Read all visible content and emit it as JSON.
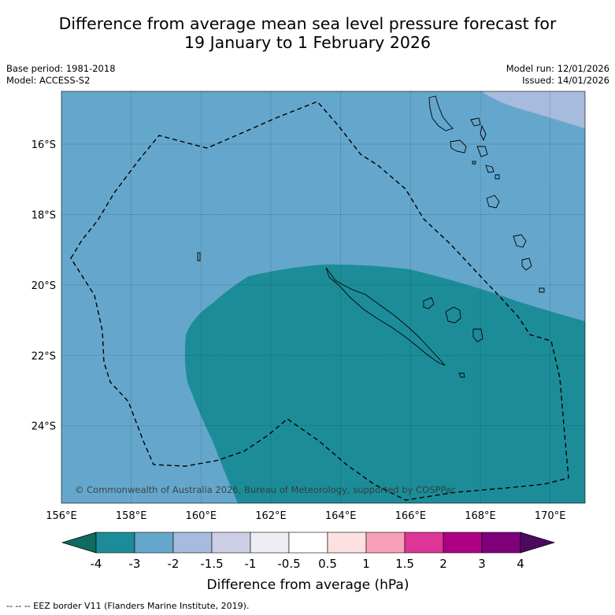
{
  "title": {
    "line1": "Difference from average mean sea level pressure forecast for",
    "line2": "19 January to 1 February 2026"
  },
  "meta": {
    "base_period": "Base period: 1981-2018",
    "model": "Model: ACCESS-S2",
    "model_run": "Model run: 12/01/2026",
    "issued": "Issued: 14/01/2026"
  },
  "map": {
    "lon_range": [
      156,
      171
    ],
    "lat_range": [
      -26.2,
      -14.5
    ],
    "lon_ticks": [
      {
        "value": 156,
        "label": "156°E"
      },
      {
        "value": 158,
        "label": "158°E"
      },
      {
        "value": 160,
        "label": "160°E"
      },
      {
        "value": 162,
        "label": "162°E"
      },
      {
        "value": 164,
        "label": "164°E"
      },
      {
        "value": 166,
        "label": "166°E"
      },
      {
        "value": 168,
        "label": "168°E"
      },
      {
        "value": 170,
        "label": "170°E"
      }
    ],
    "lat_ticks": [
      {
        "value": -16,
        "label": "16°S"
      },
      {
        "value": -18,
        "label": "18°S"
      },
      {
        "value": -20,
        "label": "20°S"
      },
      {
        "value": -22,
        "label": "22°S"
      },
      {
        "value": -24,
        "label": "24°S"
      }
    ],
    "copyright": "© Commonwealth of Australia 2026, Bureau of Meteorology, supported by COSPPac",
    "region_colors": {
      "minus3_to_minus2": "#65a7cc",
      "minus4_to_minus3": "#1c8d98",
      "minus2_to_minus1_5": "#a7bbdc"
    }
  },
  "colorbar": {
    "label": "Difference from average (hPa)",
    "under_color": "#0d6b61",
    "over_color": "#4c0a5f",
    "ticks": [
      "-4",
      "-3",
      "-2",
      "-1.5",
      "-1",
      "-0.5",
      "0.5",
      "1",
      "1.5",
      "2",
      "3",
      "4"
    ],
    "colors": [
      "#1c8d98",
      "#65a7cc",
      "#a7bbdc",
      "#cccfe6",
      "#ededf3",
      "#ffffff",
      "#fde0e0",
      "#f8a0ba",
      "#df3597",
      "#ad0083",
      "#7e007a"
    ]
  },
  "legend": {
    "eez": "--  --  -- EEZ border V11 (Flanders Marine Institute, 2019)."
  }
}
